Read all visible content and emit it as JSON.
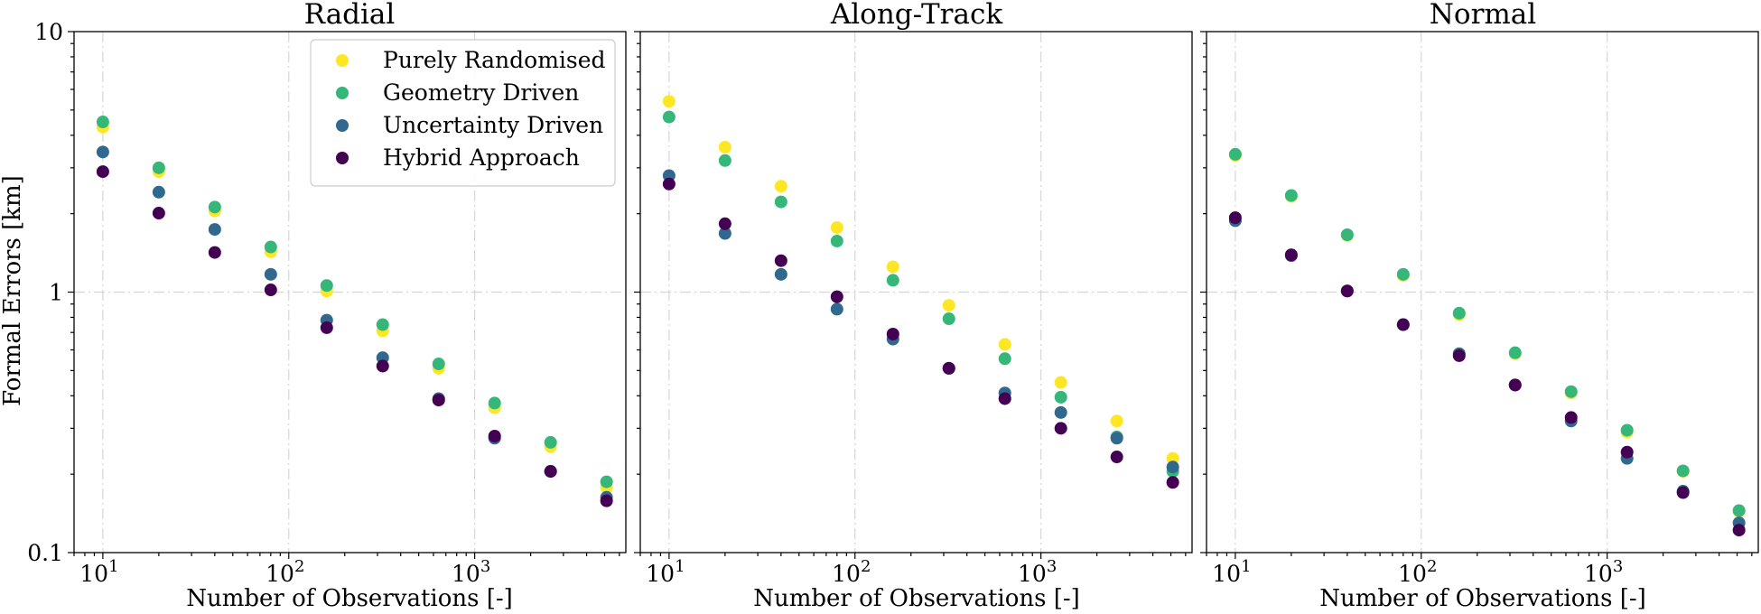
{
  "figure": {
    "ylabel": "Formal Errors [km]"
  },
  "chart_data": [
    {
      "type": "scatter",
      "title": "Radial",
      "xlabel": "Number of Observations [-]",
      "ylabel": "Formal Errors [km]",
      "xscale": "log",
      "yscale": "log",
      "xlim": [
        7,
        6500
      ],
      "ylim": [
        0.1,
        10
      ],
      "x_tick_labels": [
        "10",
        "10",
        "10"
      ],
      "x_tick_exponents": [
        "1",
        "2",
        "3"
      ],
      "y_tick_labels": [
        "0.1",
        "1",
        "10"
      ],
      "grid": true,
      "legend": "top-right",
      "x": [
        10,
        20,
        40,
        80,
        160,
        320,
        640,
        1280,
        2560,
        5120
      ],
      "series": [
        {
          "name": "Purely Randomised",
          "color": "#fde725",
          "values": [
            4.3,
            2.9,
            2.05,
            1.43,
            1.01,
            0.71,
            0.51,
            0.36,
            0.255,
            0.178
          ]
        },
        {
          "name": "Geometry Driven",
          "color": "#35b779",
          "values": [
            4.5,
            3.0,
            2.12,
            1.49,
            1.06,
            0.75,
            0.53,
            0.375,
            0.265,
            0.187
          ]
        },
        {
          "name": "Uncertainty Driven",
          "color": "#31688e",
          "values": [
            3.45,
            2.42,
            1.74,
            1.17,
            0.78,
            0.56,
            0.39,
            0.275,
            0.205,
            0.163
          ]
        },
        {
          "name": "Hybrid Approach",
          "color": "#440154",
          "values": [
            2.9,
            2.01,
            1.42,
            1.02,
            0.73,
            0.52,
            0.385,
            0.28,
            0.205,
            0.158
          ]
        }
      ]
    },
    {
      "type": "scatter",
      "title": "Along-Track",
      "xlabel": "Number of Observations [-]",
      "ylabel": "",
      "xscale": "log",
      "yscale": "log",
      "xlim": [
        7,
        6500
      ],
      "ylim": [
        0.1,
        10
      ],
      "x_tick_labels": [
        "10",
        "10",
        "10"
      ],
      "x_tick_exponents": [
        "1",
        "2",
        "3"
      ],
      "grid": true,
      "x": [
        10,
        20,
        40,
        80,
        160,
        320,
        640,
        1280,
        2560,
        5120
      ],
      "series": [
        {
          "name": "Purely Randomised",
          "color": "#fde725",
          "values": [
            5.4,
            3.6,
            2.55,
            1.77,
            1.25,
            0.89,
            0.63,
            0.45,
            0.32,
            0.23
          ]
        },
        {
          "name": "Geometry Driven",
          "color": "#35b779",
          "values": [
            4.7,
            3.2,
            2.22,
            1.57,
            1.11,
            0.79,
            0.555,
            0.395,
            0.278,
            0.205
          ]
        },
        {
          "name": "Uncertainty Driven",
          "color": "#31688e",
          "values": [
            2.8,
            1.68,
            1.17,
            0.86,
            0.66,
            0.51,
            0.41,
            0.345,
            0.275,
            0.213
          ]
        },
        {
          "name": "Hybrid Approach",
          "color": "#440154",
          "values": [
            2.6,
            1.83,
            1.32,
            0.96,
            0.69,
            0.51,
            0.39,
            0.3,
            0.233,
            0.186
          ]
        }
      ]
    },
    {
      "type": "scatter",
      "title": "Normal",
      "xlabel": "Number of Observations [-]",
      "ylabel": "",
      "xscale": "log",
      "yscale": "log",
      "xlim": [
        7,
        6500
      ],
      "ylim": [
        0.1,
        10
      ],
      "x_tick_labels": [
        "10",
        "10",
        "10"
      ],
      "x_tick_exponents": [
        "1",
        "2",
        "3"
      ],
      "grid": true,
      "x": [
        10,
        20,
        40,
        80,
        160,
        320,
        640,
        1280,
        2560,
        5120
      ],
      "series": [
        {
          "name": "Purely Randomised",
          "color": "#fde725",
          "values": [
            3.35,
            2.33,
            1.65,
            1.16,
            0.82,
            0.58,
            0.41,
            0.29,
            0.205,
            0.144
          ]
        },
        {
          "name": "Geometry Driven",
          "color": "#35b779",
          "values": [
            3.38,
            2.35,
            1.66,
            1.17,
            0.83,
            0.585,
            0.415,
            0.295,
            0.206,
            0.145
          ]
        },
        {
          "name": "Uncertainty Driven",
          "color": "#31688e",
          "values": [
            1.88,
            1.38,
            1.01,
            0.75,
            0.58,
            0.44,
            0.32,
            0.23,
            0.172,
            0.13
          ]
        },
        {
          "name": "Hybrid Approach",
          "color": "#440154",
          "values": [
            1.93,
            1.39,
            1.01,
            0.75,
            0.57,
            0.44,
            0.33,
            0.243,
            0.17,
            0.122
          ]
        }
      ]
    }
  ]
}
